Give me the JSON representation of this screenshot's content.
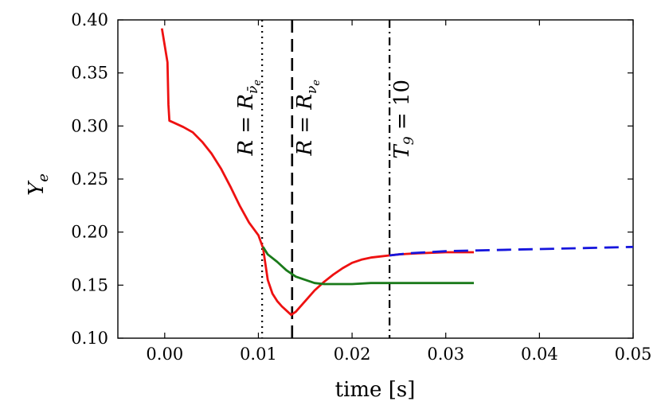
{
  "chart_data": {
    "type": "line",
    "title": "",
    "xlabel": "time [s]",
    "ylabel": "Y",
    "ylabel_subscript": "e",
    "xlim": [
      -0.005,
      0.05
    ],
    "ylim": [
      0.1,
      0.4
    ],
    "xticks": [
      0.0,
      0.01,
      0.02,
      0.03,
      0.04,
      0.05
    ],
    "xtick_labels": [
      "0.00",
      "0.01",
      "0.02",
      "0.03",
      "0.04",
      "0.05"
    ],
    "yticks": [
      0.1,
      0.15,
      0.2,
      0.25,
      0.3,
      0.35,
      0.4
    ],
    "ytick_labels": [
      "0.10",
      "0.15",
      "0.20",
      "0.25",
      "0.30",
      "0.35",
      "0.40"
    ],
    "series": [
      {
        "name": "red",
        "color": "#ee1111",
        "style": "solid",
        "x": [
          -0.0003,
          0.0003,
          0.0004,
          0.0005,
          0.001,
          0.002,
          0.003,
          0.004,
          0.005,
          0.006,
          0.007,
          0.008,
          0.009,
          0.01,
          0.0105,
          0.011,
          0.0115,
          0.012,
          0.0125,
          0.013,
          0.0135,
          0.014,
          0.015,
          0.016,
          0.017,
          0.018,
          0.019,
          0.02,
          0.021,
          0.022,
          0.023,
          0.024,
          0.025,
          0.027,
          0.03,
          0.033
        ],
        "y": [
          0.392,
          0.36,
          0.32,
          0.305,
          0.303,
          0.299,
          0.294,
          0.285,
          0.274,
          0.26,
          0.243,
          0.225,
          0.209,
          0.197,
          0.185,
          0.155,
          0.142,
          0.135,
          0.13,
          0.126,
          0.122,
          0.125,
          0.135,
          0.145,
          0.153,
          0.16,
          0.166,
          0.171,
          0.174,
          0.176,
          0.177,
          0.178,
          0.179,
          0.18,
          0.181,
          0.181
        ]
      },
      {
        "name": "green",
        "color": "#1a7a1a",
        "style": "solid",
        "x": [
          0.0105,
          0.011,
          0.012,
          0.013,
          0.014,
          0.015,
          0.016,
          0.017,
          0.018,
          0.02,
          0.022,
          0.025,
          0.03,
          0.033
        ],
        "y": [
          0.186,
          0.179,
          0.172,
          0.164,
          0.158,
          0.155,
          0.152,
          0.151,
          0.151,
          0.151,
          0.152,
          0.152,
          0.152,
          0.152
        ]
      },
      {
        "name": "blue",
        "color": "#1515dd",
        "style": "dashed",
        "x": [
          0.024,
          0.026,
          0.03,
          0.035,
          0.04,
          0.045,
          0.05
        ],
        "y": [
          0.178,
          0.18,
          0.182,
          0.183,
          0.184,
          0.185,
          0.186
        ]
      }
    ],
    "vlines": [
      {
        "x": 0.0104,
        "style": "dotted",
        "label_main": "R = R",
        "label_sub": "ν̄",
        "label_subsub": "e"
      },
      {
        "x": 0.0136,
        "style": "dashed",
        "label_main": "R = R",
        "label_sub": "ν",
        "label_subsub": "e"
      },
      {
        "x": 0.024,
        "style": "dashdot",
        "label_main": "T",
        "label_sub": "9",
        "label_tail": " = 10"
      }
    ]
  }
}
